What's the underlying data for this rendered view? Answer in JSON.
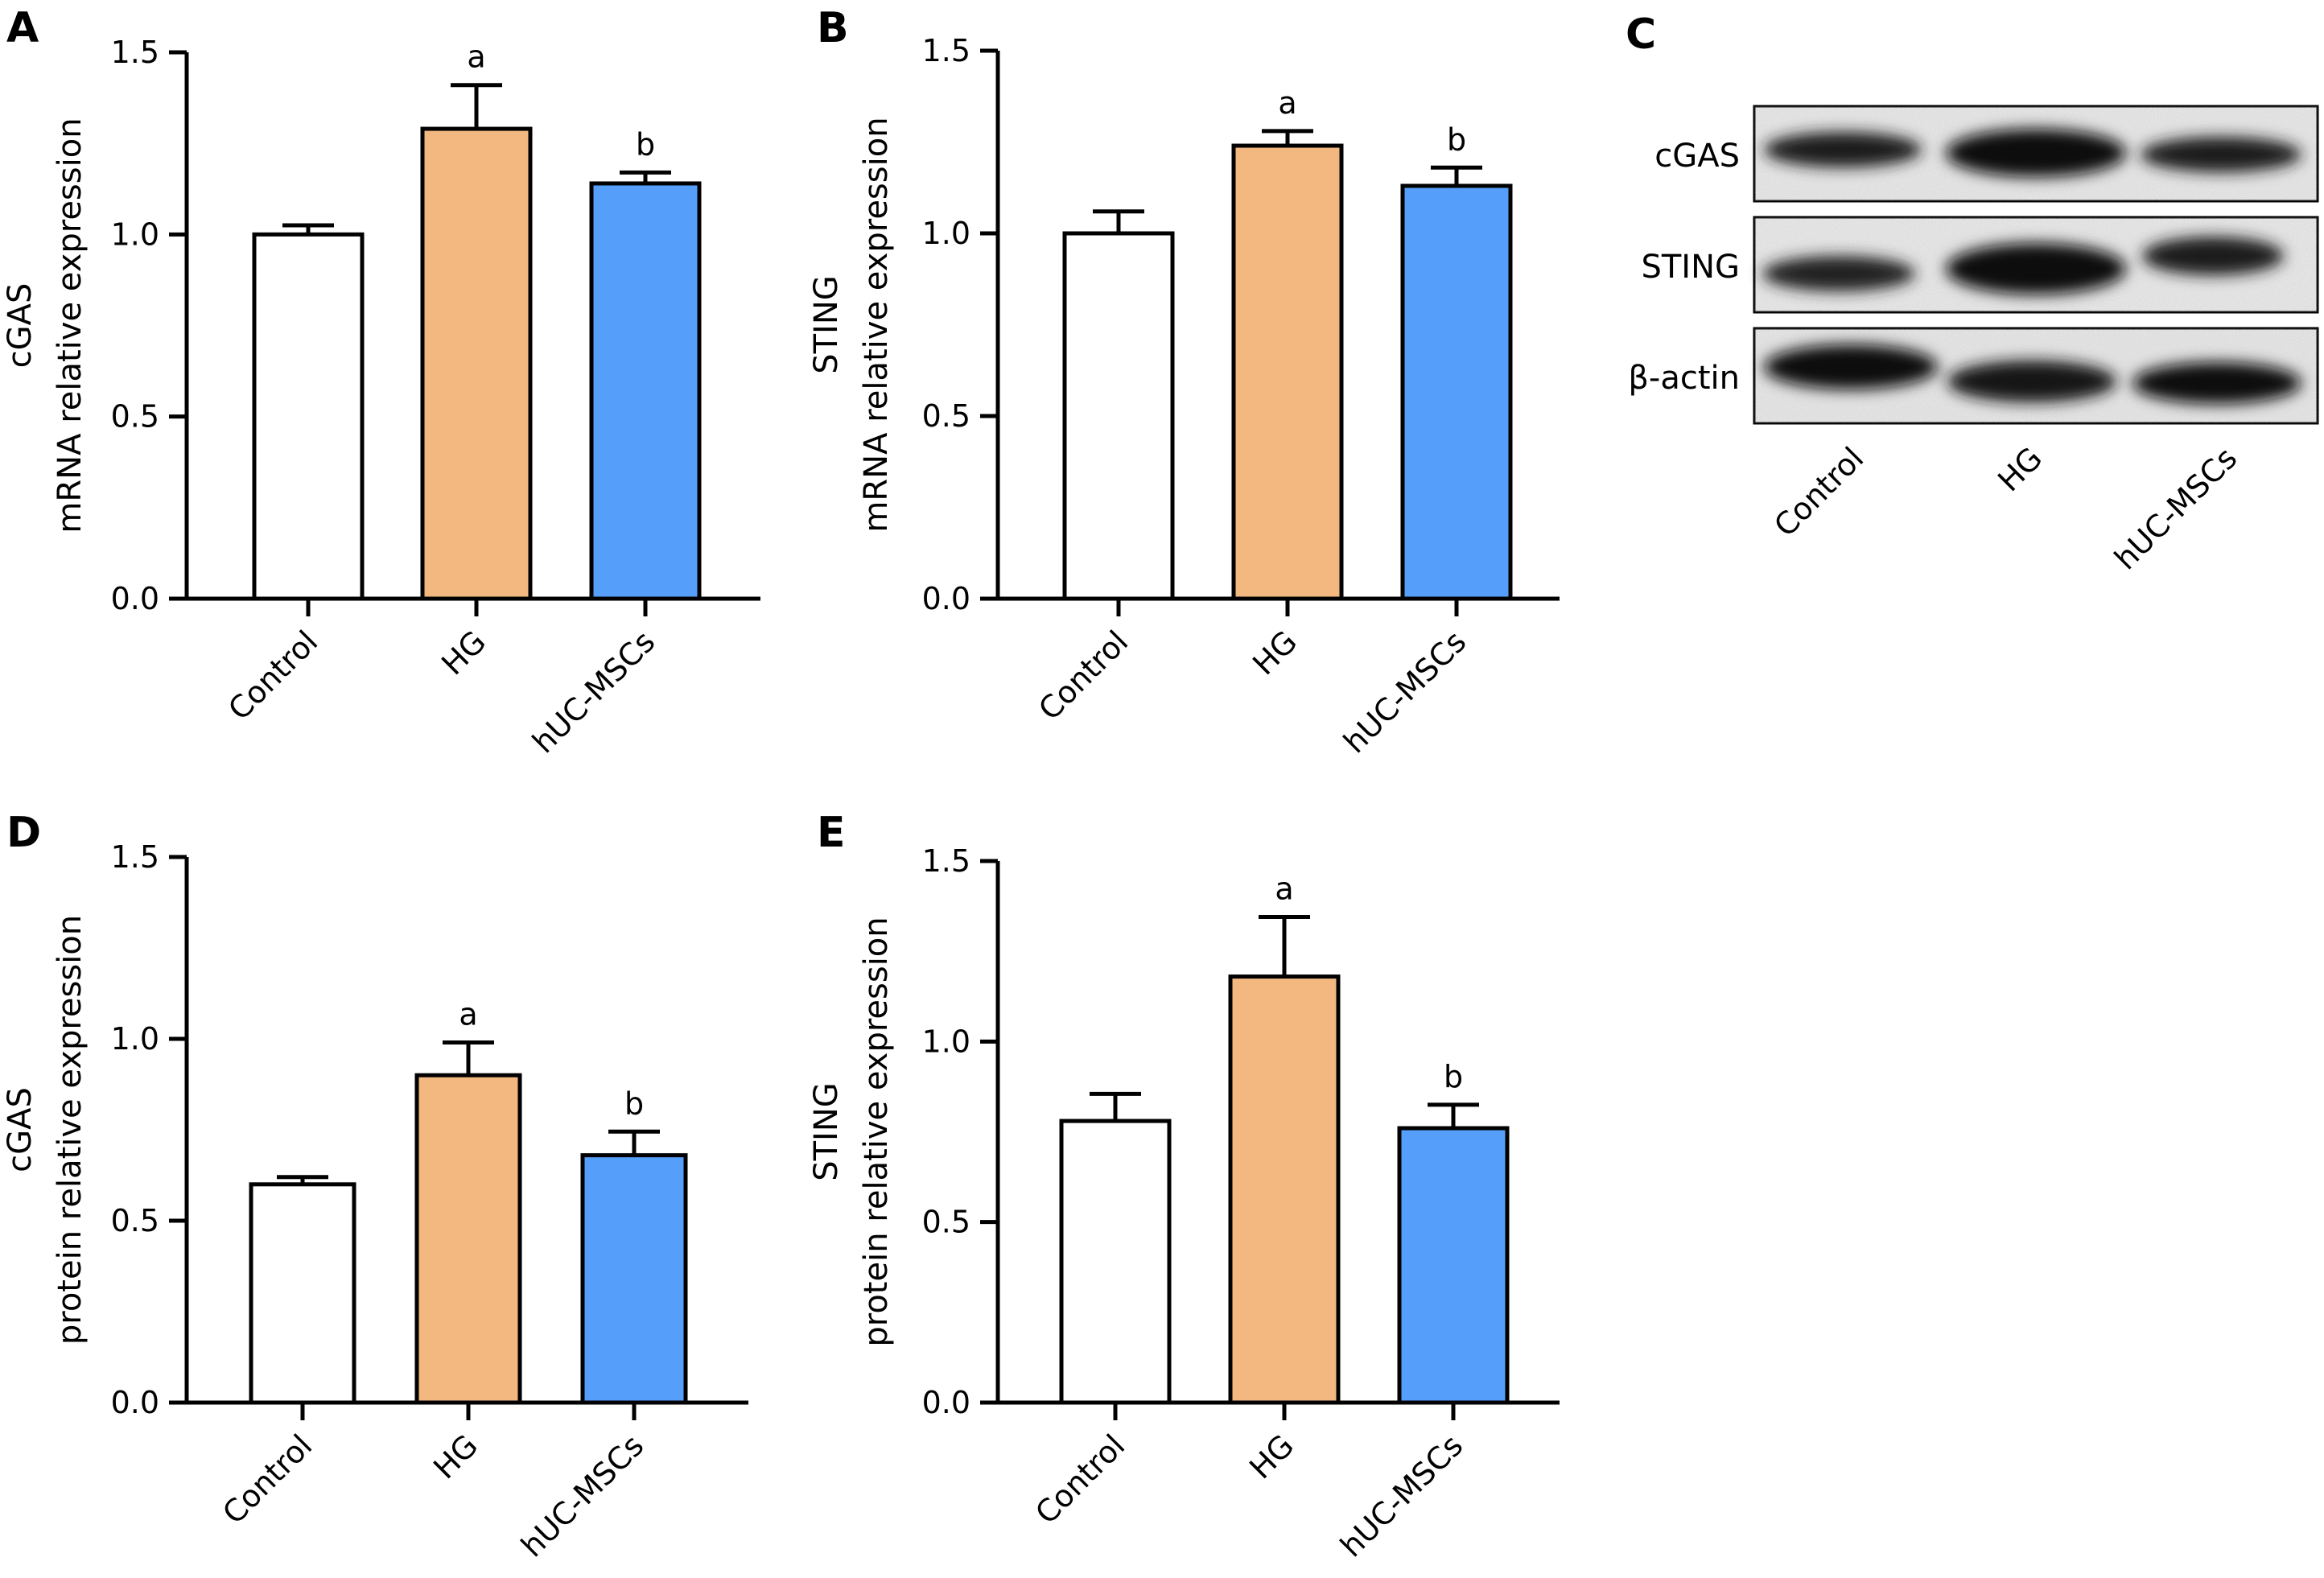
{
  "panels": {
    "A": "A",
    "B": "B",
    "C": "C",
    "D": "D",
    "E": "E"
  },
  "colors": {
    "Control": "#ffffff",
    "HG": "#f2b880",
    "hUC-MSCs": "#559ffb",
    "stroke": "#000000"
  },
  "chart_data": [
    {
      "panel": "A",
      "type": "bar",
      "categories": [
        "Control",
        "HG",
        "hUC-MSCs"
      ],
      "values": [
        1.0,
        1.29,
        1.14
      ],
      "errors": [
        0.025,
        0.12,
        0.03
      ],
      "significance": [
        "",
        "a",
        "b"
      ],
      "ylabel_line1": "cGAS",
      "ylabel_line2": "mRNA relative expression",
      "ylim": [
        0,
        1.5
      ],
      "yticks": [
        "0.0",
        "0.5",
        "1.0",
        "1.5"
      ]
    },
    {
      "panel": "B",
      "type": "bar",
      "categories": [
        "Control",
        "HG",
        "hUC-MSCs"
      ],
      "values": [
        1.0,
        1.24,
        1.13
      ],
      "errors": [
        0.06,
        0.04,
        0.05
      ],
      "significance": [
        "",
        "a",
        "b"
      ],
      "ylabel_line1": "STING",
      "ylabel_line2": "mRNA relative expression",
      "ylim": [
        0,
        1.5
      ],
      "yticks": [
        "0.0",
        "0.5",
        "1.0",
        "1.5"
      ]
    },
    {
      "panel": "D",
      "type": "bar",
      "categories": [
        "Control",
        "HG",
        "hUC-MSCs"
      ],
      "values": [
        0.6,
        0.9,
        0.68
      ],
      "errors": [
        0.02,
        0.09,
        0.065
      ],
      "significance": [
        "",
        "a",
        "b"
      ],
      "ylabel_line1": "cGAS",
      "ylabel_line2": "protein relative expression",
      "ylim": [
        0,
        1.5
      ],
      "yticks": [
        "0.0",
        "0.5",
        "1.0",
        "1.5"
      ]
    },
    {
      "panel": "E",
      "type": "bar",
      "categories": [
        "Control",
        "HG",
        "hUC-MSCs"
      ],
      "values": [
        0.78,
        1.18,
        0.76
      ],
      "errors": [
        0.075,
        0.165,
        0.065
      ],
      "significance": [
        "",
        "a",
        "b"
      ],
      "ylabel_line1": "STING",
      "ylabel_line2": "protein relative expression",
      "ylim": [
        0,
        1.5
      ],
      "yticks": [
        "0.0",
        "0.5",
        "1.0",
        "1.5"
      ]
    }
  ],
  "western_blot": {
    "panel": "C",
    "rows": [
      "cGAS",
      "STING",
      "β-actin"
    ],
    "lanes": [
      "Control",
      "HG",
      "hUC-MSCs"
    ]
  }
}
